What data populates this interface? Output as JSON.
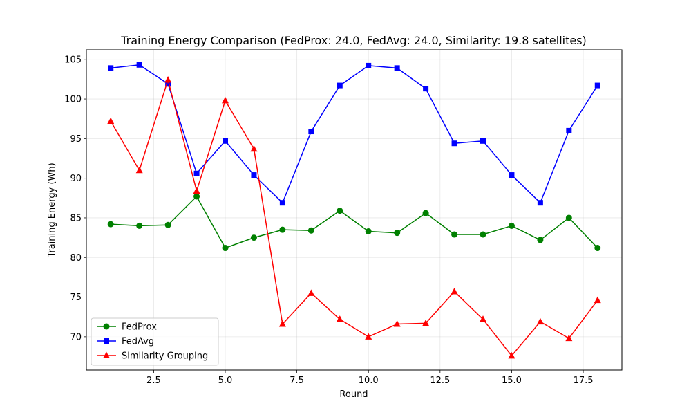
{
  "chart_data": {
    "type": "line",
    "title": "Training Energy Comparison (FedProx: 24.0, FedAvg: 24.0, Similarity: 19.8 satellites)",
    "xlabel": "Round",
    "ylabel": "Training Energy (Wh)",
    "xlim": [
      0.15,
      18.85
    ],
    "ylim": [
      65.8,
      106.2
    ],
    "xticks": [
      2.5,
      5.0,
      7.5,
      10.0,
      12.5,
      15.0,
      17.5
    ],
    "xtick_labels": [
      "2.5",
      "5.0",
      "7.5",
      "10.0",
      "12.5",
      "15.0",
      "17.5"
    ],
    "yticks": [
      70,
      75,
      80,
      85,
      90,
      95,
      100,
      105
    ],
    "ytick_labels": [
      "70",
      "75",
      "80",
      "85",
      "90",
      "95",
      "100",
      "105"
    ],
    "grid": true,
    "legend_position": "lower-left",
    "x": [
      1,
      2,
      3,
      4,
      5,
      6,
      7,
      8,
      9,
      10,
      11,
      12,
      13,
      14,
      15,
      16,
      17,
      18
    ],
    "series": [
      {
        "name": "FedProx",
        "color": "#008000",
        "marker": "circle",
        "values": [
          84.2,
          84.0,
          84.1,
          87.7,
          81.2,
          82.5,
          83.5,
          83.4,
          85.9,
          83.3,
          83.1,
          85.6,
          82.9,
          82.9,
          84.0,
          82.2,
          85.0,
          81.2
        ]
      },
      {
        "name": "FedAvg",
        "color": "#0000ff",
        "marker": "square",
        "values": [
          103.9,
          104.3,
          101.9,
          90.6,
          94.7,
          90.4,
          86.9,
          95.9,
          101.7,
          104.2,
          103.9,
          101.3,
          94.4,
          94.7,
          90.4,
          86.9,
          96.0,
          101.7
        ]
      },
      {
        "name": "Similarity Grouping",
        "color": "#ff0000",
        "marker": "triangle",
        "values": [
          97.2,
          91.0,
          102.4,
          88.4,
          99.8,
          93.7,
          71.6,
          75.5,
          72.2,
          70.0,
          71.6,
          71.7,
          75.7,
          72.2,
          67.6,
          71.9,
          69.8,
          74.6
        ]
      }
    ]
  }
}
